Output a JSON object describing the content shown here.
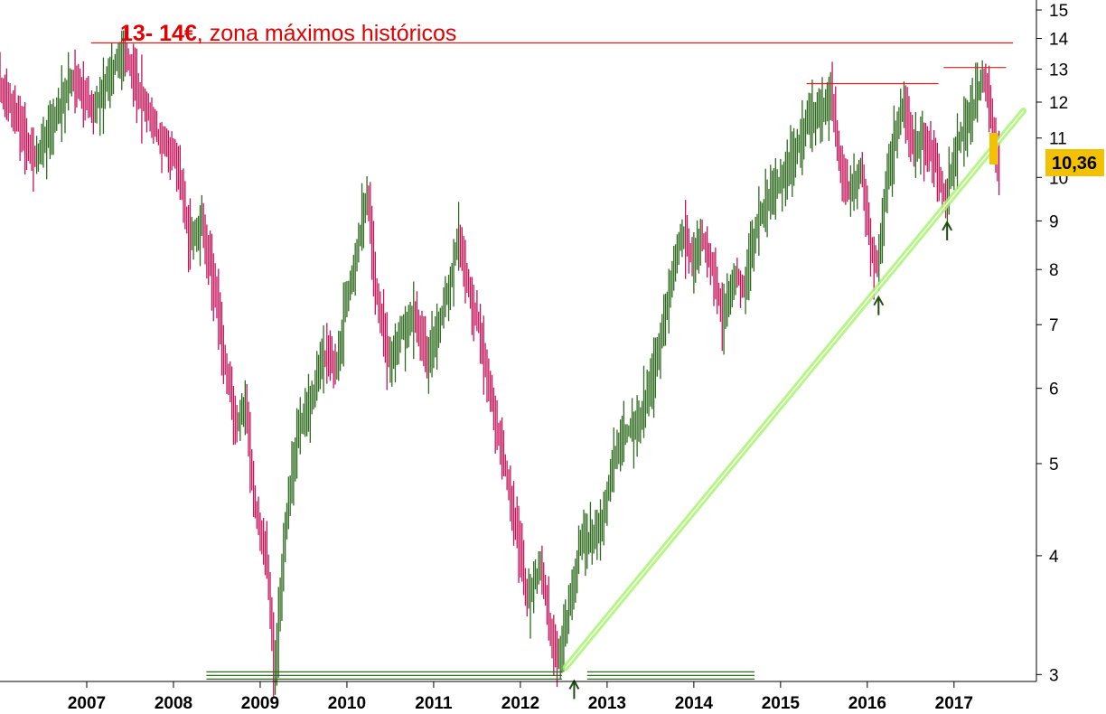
{
  "chart_data": {
    "type": "line",
    "subtype": "ohlc-bars",
    "scale": "log",
    "title": {
      "bold_part": "13- 14€",
      "rest": ", zona máximos históricos",
      "color": "#e00000"
    },
    "ylim": [
      2.95,
      15.3
    ],
    "xlim": [
      2006.0,
      2017.95
    ],
    "y_ticks": [
      "3",
      "4",
      "5",
      "6",
      "7",
      "8",
      "9",
      "10",
      "11",
      "12",
      "13",
      "14",
      "15"
    ],
    "x_ticks": [
      "2007",
      "2008",
      "2009",
      "2010",
      "2011",
      "2012",
      "2013",
      "2014",
      "2015",
      "2016",
      "2017"
    ],
    "last_price_label": "10,36",
    "last_price": 10.36,
    "grid": false,
    "legend": "none",
    "colors": {
      "up": "#2e6b1e",
      "down": "#c4145a",
      "trendline": "#a6f56a",
      "resistance": "#d81e1e",
      "support": "#2e6b1e",
      "label_bg": "#f2c200"
    },
    "price_path": [
      [
        2006.0,
        12.6
      ],
      [
        2006.2,
        11.6
      ],
      [
        2006.42,
        10.4
      ],
      [
        2006.6,
        11.3
      ],
      [
        2006.85,
        12.8
      ],
      [
        2007.1,
        11.8
      ],
      [
        2007.3,
        12.9
      ],
      [
        2007.45,
        13.7
      ],
      [
        2007.6,
        12.4
      ],
      [
        2007.85,
        11.0
      ],
      [
        2008.05,
        10.6
      ],
      [
        2008.2,
        8.6
      ],
      [
        2008.35,
        9.0
      ],
      [
        2008.5,
        7.6
      ],
      [
        2008.6,
        6.4
      ],
      [
        2008.75,
        5.5
      ],
      [
        2008.85,
        5.8
      ],
      [
        2008.95,
        4.5
      ],
      [
        2009.1,
        3.9
      ],
      [
        2009.18,
        3.0
      ],
      [
        2009.3,
        4.2
      ],
      [
        2009.45,
        5.4
      ],
      [
        2009.6,
        5.8
      ],
      [
        2009.75,
        6.5
      ],
      [
        2009.9,
        6.3
      ],
      [
        2010.0,
        7.4
      ],
      [
        2010.12,
        8.3
      ],
      [
        2010.25,
        9.6
      ],
      [
        2010.35,
        7.6
      ],
      [
        2010.5,
        6.4
      ],
      [
        2010.65,
        6.9
      ],
      [
        2010.8,
        7.2
      ],
      [
        2010.95,
        6.4
      ],
      [
        2011.05,
        6.9
      ],
      [
        2011.2,
        7.7
      ],
      [
        2011.3,
        8.7
      ],
      [
        2011.4,
        7.8
      ],
      [
        2011.55,
        6.9
      ],
      [
        2011.7,
        5.7
      ],
      [
        2011.85,
        4.9
      ],
      [
        2012.0,
        4.1
      ],
      [
        2012.1,
        3.6
      ],
      [
        2012.25,
        3.9
      ],
      [
        2012.35,
        3.4
      ],
      [
        2012.45,
        3.1
      ],
      [
        2012.55,
        3.4
      ],
      [
        2012.7,
        4.1
      ],
      [
        2012.85,
        4.2
      ],
      [
        2012.95,
        4.3
      ],
      [
        2013.1,
        5.1
      ],
      [
        2013.25,
        5.4
      ],
      [
        2013.4,
        5.6
      ],
      [
        2013.55,
        6.2
      ],
      [
        2013.7,
        7.3
      ],
      [
        2013.8,
        8.3
      ],
      [
        2013.9,
        8.8
      ],
      [
        2014.0,
        8.2
      ],
      [
        2014.1,
        8.7
      ],
      [
        2014.25,
        7.9
      ],
      [
        2014.35,
        7.1
      ],
      [
        2014.5,
        7.9
      ],
      [
        2014.6,
        7.7
      ],
      [
        2014.75,
        9.0
      ],
      [
        2014.9,
        9.6
      ],
      [
        2015.05,
        10.0
      ],
      [
        2015.2,
        10.8
      ],
      [
        2015.35,
        11.6
      ],
      [
        2015.5,
        11.7
      ],
      [
        2015.6,
        12.3
      ],
      [
        2015.7,
        10.3
      ],
      [
        2015.8,
        9.6
      ],
      [
        2015.95,
        10.2
      ],
      [
        2016.05,
        8.6
      ],
      [
        2016.13,
        7.9
      ],
      [
        2016.25,
        10.2
      ],
      [
        2016.38,
        11.5
      ],
      [
        2016.45,
        11.9
      ],
      [
        2016.55,
        10.7
      ],
      [
        2016.65,
        11.0
      ],
      [
        2016.8,
        10.5
      ],
      [
        2016.92,
        9.4
      ],
      [
        2017.0,
        10.4
      ],
      [
        2017.1,
        11.1
      ],
      [
        2017.2,
        11.6
      ],
      [
        2017.3,
        12.3
      ],
      [
        2017.35,
        12.8
      ],
      [
        2017.42,
        12.0
      ],
      [
        2017.48,
        11.0
      ],
      [
        2017.52,
        10.36
      ]
    ],
    "annotations": {
      "resistance_lines": [
        {
          "x0": 2007.05,
          "x1": 2017.68,
          "y": 13.85
        },
        {
          "x0": 2015.3,
          "x1": 2016.82,
          "y": 12.55
        },
        {
          "x0": 2016.88,
          "x1": 2017.6,
          "y": 13.05
        }
      ],
      "support_lines": [
        {
          "x0": 2008.38,
          "x1": 2012.48,
          "y": 2.98
        },
        {
          "x0": 2012.77,
          "x1": 2014.7,
          "y": 2.98
        }
      ],
      "trendline": {
        "x0": 2012.52,
        "y0": 3.05,
        "x1": 2017.8,
        "y1": 11.75
      },
      "arrows": [
        {
          "x": 2012.62,
          "y": 2.98
        },
        {
          "x": 2016.13,
          "y": 7.55
        },
        {
          "x": 2016.92,
          "y": 9.05
        }
      ]
    }
  }
}
